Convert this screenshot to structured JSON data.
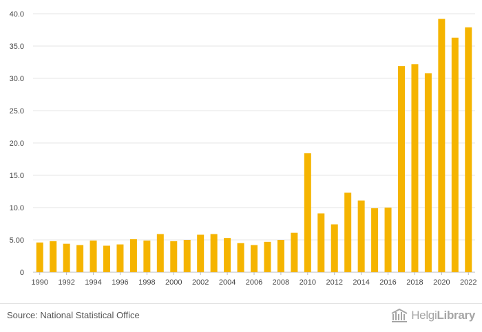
{
  "chart_data": {
    "type": "bar",
    "categories": [
      "1990",
      "1991",
      "1992",
      "1993",
      "1994",
      "1995",
      "1996",
      "1997",
      "1998",
      "1999",
      "2000",
      "2001",
      "2002",
      "2003",
      "2004",
      "2005",
      "2006",
      "2007",
      "2008",
      "2009",
      "2010",
      "2011",
      "2012",
      "2013",
      "2014",
      "2015",
      "2016",
      "2017",
      "2018",
      "2019",
      "2020",
      "2021",
      "2022"
    ],
    "values": [
      4.6,
      4.8,
      4.4,
      4.2,
      4.9,
      4.1,
      4.3,
      5.1,
      4.9,
      5.9,
      4.8,
      5.0,
      5.8,
      5.9,
      5.3,
      4.5,
      4.2,
      4.7,
      5.0,
      6.1,
      18.4,
      9.1,
      7.4,
      12.3,
      11.1,
      9.9,
      10.0,
      31.9,
      32.2,
      30.8,
      39.2,
      36.3,
      37.9
    ],
    "xtick_labels": [
      "1990",
      "1992",
      "1994",
      "1996",
      "1998",
      "2000",
      "2002",
      "2004",
      "2006",
      "2008",
      "2010",
      "2012",
      "2014",
      "2016",
      "2018",
      "2020",
      "2022"
    ],
    "ytick_labels": [
      "0",
      "5.00",
      "10.0",
      "15.0",
      "20.0",
      "25.0",
      "30.0",
      "35.0",
      "40.0"
    ],
    "ylim": [
      0,
      40
    ],
    "grid": true,
    "bar_color": "#f5b400",
    "title": "",
    "xlabel": "",
    "ylabel": ""
  },
  "footer": {
    "source": "Source: National Statistical Office",
    "logo_light": "Helgi",
    "logo_bold": "Library"
  }
}
